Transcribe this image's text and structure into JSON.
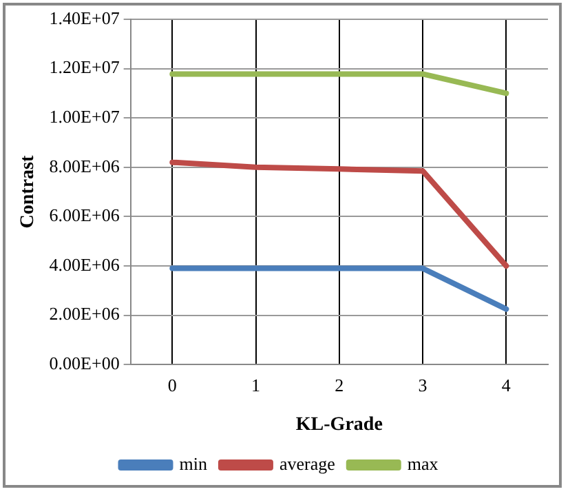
{
  "chart_data": {
    "type": "line",
    "xlabel": "KL-Grade",
    "ylabel": "Contrast",
    "categories": [
      "0",
      "1",
      "2",
      "3",
      "4"
    ],
    "series": [
      {
        "name": "min",
        "color": "#4a7ebb",
        "values": [
          3900000,
          3900000,
          3900000,
          3900000,
          2250000
        ]
      },
      {
        "name": "average",
        "color": "#be4b48",
        "values": [
          8200000,
          8000000,
          7930000,
          7850000,
          4000000
        ]
      },
      {
        "name": "max",
        "color": "#98b954",
        "values": [
          11780000,
          11780000,
          11780000,
          11780000,
          11000000
        ]
      }
    ],
    "ylim": [
      0,
      14000000
    ],
    "yticks": [
      {
        "value": 0,
        "label": "0.00E+00"
      },
      {
        "value": 2000000,
        "label": "2.00E+06"
      },
      {
        "value": 4000000,
        "label": "4.00E+06"
      },
      {
        "value": 6000000,
        "label": "6.00E+06"
      },
      {
        "value": 8000000,
        "label": "8.00E+06"
      },
      {
        "value": 10000000,
        "label": "1.00E+07"
      },
      {
        "value": 12000000,
        "label": "1.20E+07"
      },
      {
        "value": 14000000,
        "label": "1.40E+07"
      }
    ],
    "grid": true,
    "legend": "bottom",
    "marker": "none",
    "line_style": "solid"
  }
}
